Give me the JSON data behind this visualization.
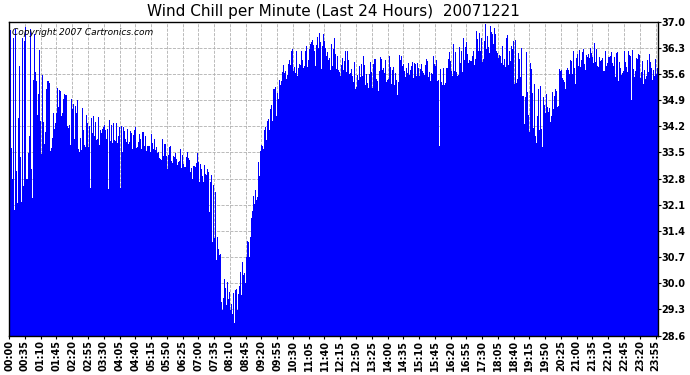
{
  "title": "Wind Chill per Minute (Last 24 Hours)  20071221",
  "copyright_text": "Copyright 2007 Cartronics.com",
  "yticks": [
    28.6,
    29.3,
    30.0,
    30.7,
    31.4,
    32.1,
    32.8,
    33.5,
    34.2,
    34.9,
    35.6,
    36.3,
    37.0
  ],
  "ylim_min": 28.6,
  "ylim_max": 37.0,
  "bar_color": "#0000ff",
  "bg_color": "#ffffff",
  "grid_color": "#b0b0b0",
  "title_fontsize": 11,
  "tick_label_fontsize": 7,
  "xtick_labels": [
    "00:00",
    "00:35",
    "01:10",
    "01:45",
    "02:20",
    "02:55",
    "03:30",
    "04:05",
    "04:40",
    "05:15",
    "05:50",
    "06:25",
    "07:00",
    "07:35",
    "08:10",
    "08:45",
    "09:20",
    "09:55",
    "10:30",
    "11:05",
    "11:40",
    "12:15",
    "12:50",
    "13:25",
    "14:00",
    "14:35",
    "15:10",
    "15:45",
    "16:20",
    "16:55",
    "17:30",
    "18:05",
    "18:40",
    "19:15",
    "19:50",
    "20:25",
    "21:00",
    "21:35",
    "22:10",
    "22:45",
    "23:20",
    "23:55"
  ],
  "num_points": 1440,
  "fig_width": 6.9,
  "fig_height": 3.75,
  "dpi": 100
}
